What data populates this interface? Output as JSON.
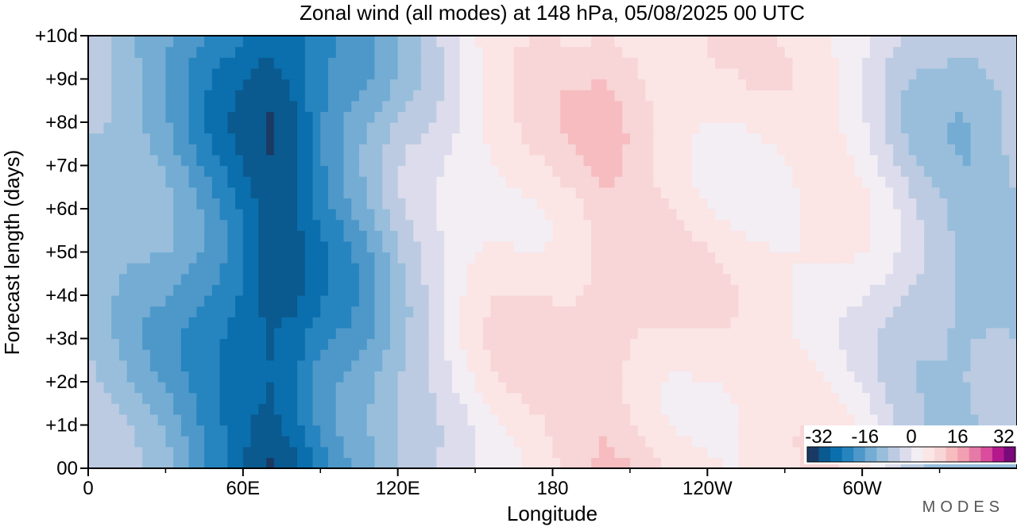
{
  "chart_data": {
    "type": "heatmap",
    "title": "Zonal wind (all modes) at 148 hPa,  05/08/2025  00 UTC",
    "xlabel": "Longitude",
    "ylabel": "Forecast length (days)",
    "x_ticks": [
      "0",
      "60E",
      "120E",
      "180",
      "120W",
      "60W"
    ],
    "y_ticks": [
      "00",
      "+1d",
      "+2d",
      "+3d",
      "+4d",
      "+5d",
      "+6d",
      "+7d",
      "+8d",
      "+9d",
      "+10d"
    ],
    "xlim": [
      0,
      360
    ],
    "ylim": [
      0,
      10
    ],
    "x_units": "degrees east",
    "y_units": "days",
    "colorbar": {
      "ticks": [
        "-32",
        "-16",
        "0",
        "16",
        "32"
      ],
      "range": [
        -36,
        36
      ],
      "step": 4,
      "placement": "bottom-right",
      "colors": [
        "#1b3a63",
        "#0a5a8f",
        "#0b6fae",
        "#2684bf",
        "#4d98c9",
        "#74acd3",
        "#98bedb",
        "#bccbe2",
        "#dcdcec",
        "#f3eef4",
        "#fbe5e5",
        "#f8d5d6",
        "#f6bcc0",
        "#f19fb1",
        "#e67aa6",
        "#d94d9c",
        "#b5188d",
        "#7a0a7a"
      ]
    },
    "longitude_profile": {
      "lon": [
        0,
        10,
        20,
        30,
        40,
        50,
        60,
        70,
        80,
        90,
        100,
        110,
        120,
        130,
        140,
        150,
        160,
        170,
        180,
        190,
        200,
        210,
        220,
        230,
        240,
        250,
        260,
        270,
        280,
        290,
        300,
        310,
        320,
        330,
        340,
        350,
        360
      ],
      "wind": [
        -8,
        -10,
        -12,
        -14,
        -18,
        -22,
        -26,
        -30,
        -28,
        -22,
        -18,
        -14,
        -8,
        -4,
        0,
        4,
        6,
        7,
        8,
        9,
        11,
        10,
        8,
        7,
        6,
        5,
        5,
        5,
        5,
        4,
        2,
        -2,
        -6,
        -8,
        -10,
        -9,
        -8
      ]
    }
  },
  "brand": "MODES"
}
